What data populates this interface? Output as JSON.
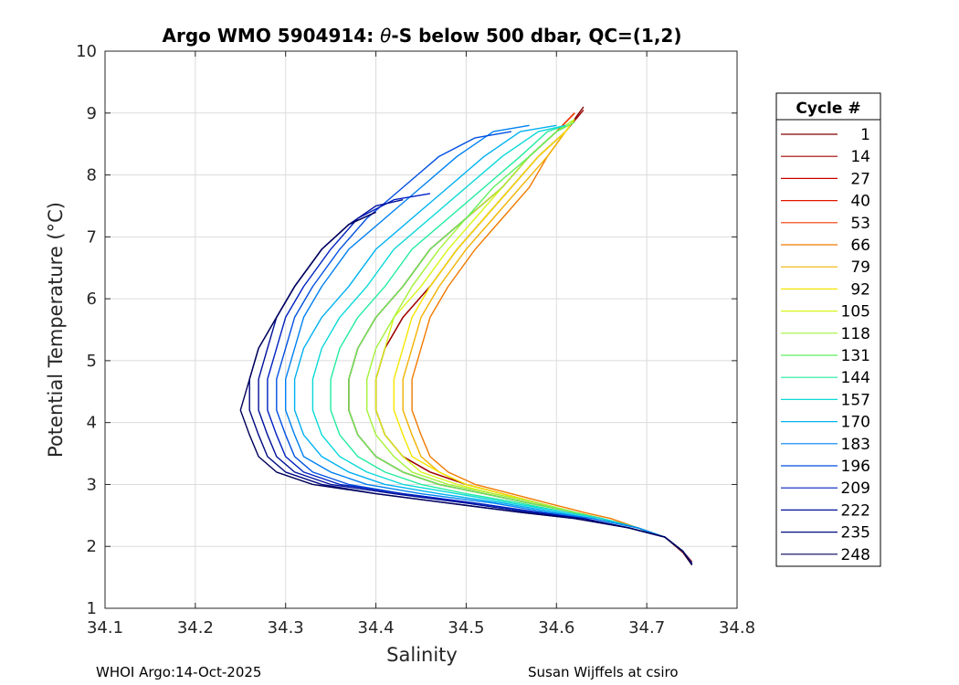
{
  "chart_data": {
    "type": "line",
    "title_prefix": "Argo WMO 5904914: ",
    "title_symbol": "θ",
    "title_suffix": "-S below 500 dbar,  QC=(1,2)",
    "xlabel": "Salinity",
    "ylabel": "Potential Temperature (°C)",
    "xlim": [
      34.1,
      34.8
    ],
    "ylim": [
      1,
      10
    ],
    "xticks": [
      "34.1",
      "34.2",
      "34.3",
      "34.4",
      "34.5",
      "34.6",
      "34.7",
      "34.8"
    ],
    "yticks": [
      "1",
      "2",
      "3",
      "4",
      "5",
      "6",
      "7",
      "8",
      "9",
      "10"
    ],
    "grid": true,
    "legend": {
      "title": "Cycle #",
      "placement": "outside-right",
      "entries": [
        {
          "label": "1",
          "color": "#800000"
        },
        {
          "label": "14",
          "color": "#a30000"
        },
        {
          "label": "27",
          "color": "#c80000"
        },
        {
          "label": "40",
          "color": "#e41400"
        },
        {
          "label": "53",
          "color": "#f23a00"
        },
        {
          "label": "66",
          "color": "#f07a00"
        },
        {
          "label": "79",
          "color": "#f2b200"
        },
        {
          "label": "92",
          "color": "#f5e600"
        },
        {
          "label": "105",
          "color": "#d8f51a"
        },
        {
          "label": "118",
          "color": "#a4f23a"
        },
        {
          "label": "131",
          "color": "#5ef060"
        },
        {
          "label": "144",
          "color": "#22eca0"
        },
        {
          "label": "157",
          "color": "#0ad8d8"
        },
        {
          "label": "170",
          "color": "#00b0f0"
        },
        {
          "label": "183",
          "color": "#0080f0"
        },
        {
          "label": "196",
          "color": "#0050e0"
        },
        {
          "label": "209",
          "color": "#0020c0"
        },
        {
          "label": "222",
          "color": "#00109a"
        },
        {
          "label": "235",
          "color": "#000a80"
        },
        {
          "label": "248",
          "color": "#00005a"
        }
      ]
    },
    "series": [
      {
        "name": "1",
        "x": [
          34.75,
          34.74,
          34.72,
          34.69,
          34.65,
          34.62,
          34.58,
          34.54,
          34.5,
          34.46,
          34.43,
          34.41,
          34.4,
          34.4,
          34.41,
          34.43,
          34.46,
          34.49,
          34.52,
          34.55,
          34.58,
          34.61,
          34.63
        ],
        "y": [
          1.7,
          1.9,
          2.15,
          2.3,
          2.45,
          2.55,
          2.7,
          2.85,
          3.0,
          3.2,
          3.45,
          3.8,
          4.2,
          4.7,
          5.2,
          5.7,
          6.2,
          6.8,
          7.3,
          7.8,
          8.3,
          8.7,
          9.1
        ]
      },
      {
        "name": "14",
        "x": [
          34.75,
          34.74,
          34.72,
          34.69,
          34.65,
          34.62,
          34.58,
          34.54,
          34.5,
          34.46,
          34.43,
          34.41,
          34.4,
          34.4,
          34.41,
          34.43,
          34.46,
          34.49,
          34.52,
          34.55,
          34.58,
          34.61,
          34.63
        ],
        "y": [
          1.75,
          1.92,
          2.15,
          2.3,
          2.45,
          2.55,
          2.7,
          2.85,
          3.0,
          3.2,
          3.45,
          3.8,
          4.2,
          4.7,
          5.2,
          5.7,
          6.2,
          6.8,
          7.3,
          7.8,
          8.3,
          8.7,
          9.05
        ]
      },
      {
        "name": "27",
        "x": [
          34.75,
          34.74,
          34.72,
          34.69,
          34.65,
          34.62,
          34.57,
          34.52,
          34.47,
          34.43,
          34.4,
          34.38,
          34.37,
          34.37,
          34.38,
          34.4,
          34.43,
          34.46,
          34.5,
          34.54,
          34.57,
          34.6,
          34.62
        ],
        "y": [
          1.72,
          1.92,
          2.15,
          2.3,
          2.45,
          2.55,
          2.7,
          2.85,
          3.0,
          3.2,
          3.45,
          3.8,
          4.2,
          4.7,
          5.2,
          5.7,
          6.2,
          6.8,
          7.3,
          7.8,
          8.3,
          8.7,
          9.0
        ]
      },
      {
        "name": "40",
        "x": [
          34.75,
          34.74,
          34.72,
          34.69,
          34.65,
          34.62,
          34.57,
          34.52,
          34.47,
          34.43,
          34.4,
          34.38,
          34.37,
          34.37,
          34.38,
          34.4,
          34.43,
          34.46,
          34.5,
          34.54,
          34.57,
          34.6,
          34.62
        ],
        "y": [
          1.72,
          1.92,
          2.15,
          2.3,
          2.45,
          2.55,
          2.7,
          2.85,
          3.0,
          3.2,
          3.45,
          3.8,
          4.2,
          4.7,
          5.2,
          5.7,
          6.2,
          6.8,
          7.3,
          7.8,
          8.3,
          8.7,
          9.0
        ]
      },
      {
        "name": "53",
        "x": [
          34.75,
          34.74,
          34.72,
          34.69,
          34.65,
          34.62,
          34.57,
          34.52,
          34.47,
          34.43,
          34.4,
          34.38,
          34.37,
          34.37,
          34.38,
          34.4,
          34.43,
          34.46,
          34.5,
          34.54,
          34.57,
          34.6,
          34.62
        ],
        "y": [
          1.72,
          1.92,
          2.15,
          2.3,
          2.45,
          2.55,
          2.7,
          2.85,
          3.0,
          3.2,
          3.45,
          3.8,
          4.2,
          4.7,
          5.2,
          5.7,
          6.2,
          6.8,
          7.3,
          7.8,
          8.3,
          8.7,
          9.0
        ]
      },
      {
        "name": "66",
        "x": [
          34.75,
          34.74,
          34.72,
          34.69,
          34.66,
          34.63,
          34.59,
          34.55,
          34.51,
          34.48,
          34.46,
          34.45,
          34.44,
          34.44,
          34.45,
          34.46,
          34.48,
          34.51,
          34.54,
          34.57,
          34.59,
          34.61,
          34.62
        ],
        "y": [
          1.72,
          1.92,
          2.15,
          2.3,
          2.45,
          2.55,
          2.7,
          2.85,
          3.0,
          3.2,
          3.45,
          3.8,
          4.2,
          4.7,
          5.2,
          5.7,
          6.2,
          6.8,
          7.3,
          7.8,
          8.3,
          8.7,
          8.9
        ]
      },
      {
        "name": "79",
        "x": [
          34.75,
          34.74,
          34.72,
          34.69,
          34.65,
          34.62,
          34.58,
          34.54,
          34.5,
          34.47,
          34.45,
          34.44,
          34.43,
          34.43,
          34.44,
          34.45,
          34.47,
          34.5,
          34.53,
          34.56,
          34.59,
          34.61,
          34.62
        ],
        "y": [
          1.72,
          1.92,
          2.15,
          2.3,
          2.45,
          2.55,
          2.7,
          2.85,
          3.0,
          3.2,
          3.45,
          3.8,
          4.2,
          4.7,
          5.2,
          5.7,
          6.2,
          6.8,
          7.3,
          7.8,
          8.3,
          8.7,
          8.9
        ]
      },
      {
        "name": "92",
        "x": [
          34.75,
          34.74,
          34.72,
          34.69,
          34.65,
          34.62,
          34.58,
          34.54,
          34.5,
          34.47,
          34.44,
          34.43,
          34.42,
          34.42,
          34.43,
          34.44,
          34.46,
          34.49,
          34.52,
          34.55,
          34.58,
          34.61,
          34.62
        ],
        "y": [
          1.72,
          1.92,
          2.15,
          2.3,
          2.45,
          2.55,
          2.7,
          2.85,
          3.0,
          3.2,
          3.45,
          3.8,
          4.2,
          4.7,
          5.2,
          5.7,
          6.2,
          6.8,
          7.3,
          7.8,
          8.3,
          8.7,
          8.9
        ]
      },
      {
        "name": "105",
        "x": [
          34.75,
          34.74,
          34.72,
          34.69,
          34.65,
          34.62,
          34.58,
          34.53,
          34.49,
          34.45,
          34.43,
          34.41,
          34.4,
          34.4,
          34.41,
          34.42,
          34.45,
          34.48,
          34.51,
          34.54,
          34.57,
          34.6,
          34.62
        ],
        "y": [
          1.72,
          1.92,
          2.15,
          2.3,
          2.45,
          2.55,
          2.7,
          2.85,
          3.0,
          3.2,
          3.45,
          3.8,
          4.2,
          4.7,
          5.2,
          5.7,
          6.2,
          6.8,
          7.3,
          7.8,
          8.3,
          8.7,
          8.9
        ]
      },
      {
        "name": "118",
        "x": [
          34.75,
          34.74,
          34.72,
          34.69,
          34.65,
          34.62,
          34.58,
          34.53,
          34.48,
          34.44,
          34.42,
          34.4,
          34.39,
          34.39,
          34.4,
          34.42,
          34.44,
          34.47,
          34.5,
          34.54,
          34.57,
          34.6,
          34.62
        ],
        "y": [
          1.72,
          1.92,
          2.15,
          2.3,
          2.45,
          2.55,
          2.7,
          2.85,
          3.0,
          3.2,
          3.45,
          3.8,
          4.2,
          4.7,
          5.2,
          5.7,
          6.2,
          6.8,
          7.3,
          7.8,
          8.3,
          8.7,
          8.9
        ]
      },
      {
        "name": "131",
        "x": [
          34.75,
          34.74,
          34.72,
          34.69,
          34.65,
          34.62,
          34.57,
          34.52,
          34.47,
          34.43,
          34.4,
          34.38,
          34.37,
          34.37,
          34.38,
          34.4,
          34.43,
          34.46,
          34.5,
          34.53,
          34.57,
          34.6,
          34.62
        ],
        "y": [
          1.72,
          1.92,
          2.15,
          2.3,
          2.45,
          2.55,
          2.7,
          2.85,
          3.0,
          3.2,
          3.45,
          3.8,
          4.2,
          4.7,
          5.2,
          5.7,
          6.2,
          6.8,
          7.3,
          7.8,
          8.3,
          8.7,
          8.85
        ]
      },
      {
        "name": "144",
        "x": [
          34.75,
          34.74,
          34.72,
          34.69,
          34.65,
          34.61,
          34.56,
          34.5,
          34.45,
          34.41,
          34.38,
          34.36,
          34.35,
          34.35,
          34.36,
          34.38,
          34.41,
          34.44,
          34.48,
          34.52,
          34.56,
          34.59,
          34.61
        ],
        "y": [
          1.72,
          1.92,
          2.15,
          2.3,
          2.45,
          2.55,
          2.7,
          2.85,
          3.0,
          3.2,
          3.45,
          3.8,
          4.2,
          4.7,
          5.2,
          5.7,
          6.2,
          6.8,
          7.3,
          7.8,
          8.3,
          8.7,
          8.8
        ]
      },
      {
        "name": "157",
        "x": [
          34.75,
          34.74,
          34.72,
          34.69,
          34.65,
          34.61,
          34.55,
          34.49,
          34.43,
          34.39,
          34.36,
          34.34,
          34.33,
          34.33,
          34.34,
          34.36,
          34.39,
          34.42,
          34.46,
          34.5,
          34.54,
          34.58,
          34.61
        ],
        "y": [
          1.72,
          1.92,
          2.15,
          2.3,
          2.45,
          2.55,
          2.7,
          2.85,
          3.0,
          3.2,
          3.45,
          3.8,
          4.2,
          4.7,
          5.2,
          5.7,
          6.2,
          6.8,
          7.3,
          7.8,
          8.3,
          8.7,
          8.8
        ]
      },
      {
        "name": "170",
        "x": [
          34.75,
          34.74,
          34.72,
          34.69,
          34.64,
          34.6,
          34.54,
          34.47,
          34.41,
          34.37,
          34.34,
          34.32,
          34.31,
          34.31,
          34.32,
          34.34,
          34.37,
          34.4,
          34.44,
          34.48,
          34.52,
          34.56,
          34.6
        ],
        "y": [
          1.72,
          1.92,
          2.15,
          2.3,
          2.45,
          2.55,
          2.7,
          2.85,
          3.0,
          3.2,
          3.45,
          3.8,
          4.2,
          4.7,
          5.2,
          5.7,
          6.2,
          6.8,
          7.3,
          7.8,
          8.3,
          8.7,
          8.8
        ]
      },
      {
        "name": "183",
        "x": [
          34.75,
          34.74,
          34.72,
          34.69,
          34.64,
          34.59,
          34.53,
          34.45,
          34.39,
          34.35,
          34.32,
          34.31,
          34.3,
          34.3,
          34.31,
          34.32,
          34.34,
          34.37,
          34.41,
          34.45,
          34.49,
          34.53,
          34.57
        ],
        "y": [
          1.72,
          1.92,
          2.15,
          2.3,
          2.45,
          2.55,
          2.7,
          2.85,
          3.0,
          3.2,
          3.45,
          3.8,
          4.2,
          4.7,
          5.2,
          5.7,
          6.2,
          6.8,
          7.3,
          7.8,
          8.3,
          8.7,
          8.8
        ]
      },
      {
        "name": "196",
        "x": [
          34.75,
          34.74,
          34.72,
          34.68,
          34.63,
          34.58,
          34.51,
          34.43,
          34.37,
          34.33,
          34.31,
          34.3,
          34.29,
          34.29,
          34.3,
          34.31,
          34.33,
          34.36,
          34.39,
          34.43,
          34.47,
          34.51,
          34.55
        ],
        "y": [
          1.72,
          1.92,
          2.15,
          2.3,
          2.45,
          2.55,
          2.7,
          2.85,
          3.0,
          3.2,
          3.45,
          3.8,
          4.2,
          4.7,
          5.2,
          5.7,
          6.2,
          6.8,
          7.3,
          7.8,
          8.3,
          8.6,
          8.7
        ]
      },
      {
        "name": "209",
        "x": [
          34.75,
          34.74,
          34.72,
          34.68,
          34.63,
          34.58,
          34.51,
          34.43,
          34.36,
          34.32,
          34.3,
          34.29,
          34.28,
          34.28,
          34.29,
          34.3,
          34.32,
          34.35,
          34.38,
          34.42,
          34.46
        ],
        "y": [
          1.72,
          1.92,
          2.15,
          2.3,
          2.45,
          2.55,
          2.7,
          2.85,
          3.0,
          3.2,
          3.45,
          3.8,
          4.2,
          4.7,
          5.2,
          5.7,
          6.2,
          6.8,
          7.3,
          7.6,
          7.7
        ]
      },
      {
        "name": "222",
        "x": [
          34.75,
          34.74,
          34.72,
          34.68,
          34.63,
          34.57,
          34.5,
          34.42,
          34.35,
          34.31,
          34.29,
          34.28,
          34.27,
          34.27,
          34.28,
          34.29,
          34.31,
          34.34,
          34.37,
          34.4,
          34.43
        ],
        "y": [
          1.72,
          1.92,
          2.15,
          2.3,
          2.45,
          2.55,
          2.7,
          2.85,
          3.0,
          3.2,
          3.45,
          3.8,
          4.2,
          4.7,
          5.2,
          5.7,
          6.2,
          6.8,
          7.2,
          7.5,
          7.6
        ]
      },
      {
        "name": "235",
        "x": [
          34.75,
          34.74,
          34.72,
          34.68,
          34.62,
          34.56,
          34.48,
          34.4,
          34.34,
          34.3,
          34.28,
          34.27,
          34.26,
          34.26,
          34.27,
          34.29,
          34.31,
          34.34,
          34.37,
          34.4
        ],
        "y": [
          1.72,
          1.92,
          2.15,
          2.3,
          2.45,
          2.55,
          2.7,
          2.85,
          3.0,
          3.2,
          3.45,
          3.8,
          4.2,
          4.7,
          5.2,
          5.7,
          6.2,
          6.8,
          7.2,
          7.4
        ]
      },
      {
        "name": "248",
        "x": [
          34.75,
          34.74,
          34.72,
          34.68,
          34.62,
          34.56,
          34.48,
          34.4,
          34.33,
          34.29,
          34.27,
          34.26,
          34.25,
          34.26,
          34.27,
          34.29,
          34.31,
          34.34,
          34.37,
          34.4
        ],
        "y": [
          1.7,
          1.92,
          2.15,
          2.3,
          2.45,
          2.55,
          2.7,
          2.85,
          3.0,
          3.2,
          3.45,
          3.8,
          4.2,
          4.7,
          5.2,
          5.7,
          6.2,
          6.8,
          7.2,
          7.4
        ]
      }
    ],
    "footer_left": "WHOI Argo:14-Oct-2025",
    "footer_right": "Susan Wijffels at csiro"
  }
}
